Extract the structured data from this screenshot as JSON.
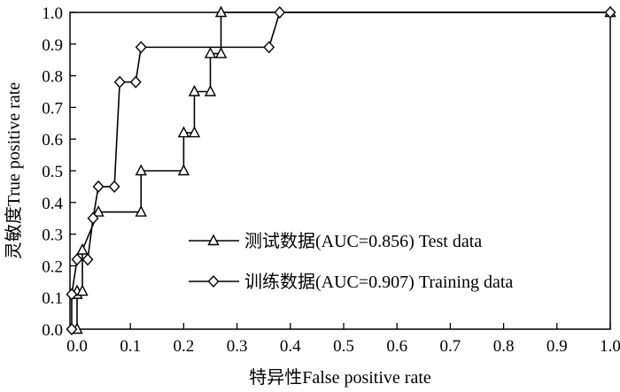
{
  "chart_data": {
    "type": "line",
    "title": "",
    "xlabel": "特异性False positive rate",
    "ylabel": "灵敏度True positive rate",
    "xlim": [
      0,
      1
    ],
    "ylim": [
      0,
      1
    ],
    "x_ticks": [
      "0.0",
      "0.1",
      "0.2",
      "0.3",
      "0.4",
      "0.5",
      "0.6",
      "0.7",
      "0.8",
      "0.9",
      "1.0"
    ],
    "y_ticks": [
      "0.0",
      "0.1",
      "0.2",
      "0.3",
      "0.4",
      "0.5",
      "0.6",
      "0.7",
      "0.8",
      "0.9",
      "1.0"
    ],
    "grid": false,
    "legend_position": "center",
    "series": [
      {
        "name": "测试数据(AUC=0.856)   Test data",
        "marker": "triangle",
        "points": [
          [
            0.0,
            0.0
          ],
          [
            0.0,
            0.11
          ],
          [
            0.0,
            0.12
          ],
          [
            0.01,
            0.12
          ],
          [
            0.01,
            0.25
          ],
          [
            0.04,
            0.37
          ],
          [
            0.12,
            0.37
          ],
          [
            0.12,
            0.5
          ],
          [
            0.2,
            0.5
          ],
          [
            0.2,
            0.62
          ],
          [
            0.22,
            0.62
          ],
          [
            0.22,
            0.75
          ],
          [
            0.25,
            0.75
          ],
          [
            0.25,
            0.87
          ],
          [
            0.27,
            0.87
          ],
          [
            0.27,
            1.0
          ],
          [
            1.0,
            1.0
          ]
        ]
      },
      {
        "name": "训练数据(AUC=0.907)   Training data",
        "marker": "diamond",
        "points": [
          [
            -0.01,
            0.0
          ],
          [
            -0.01,
            0.11
          ],
          [
            0.0,
            0.22
          ],
          [
            0.02,
            0.22
          ],
          [
            0.03,
            0.35
          ],
          [
            0.04,
            0.45
          ],
          [
            0.07,
            0.45
          ],
          [
            0.08,
            0.78
          ],
          [
            0.11,
            0.78
          ],
          [
            0.12,
            0.89
          ],
          [
            0.36,
            0.89
          ],
          [
            0.38,
            1.0
          ],
          [
            1.0,
            1.0
          ]
        ]
      }
    ]
  }
}
